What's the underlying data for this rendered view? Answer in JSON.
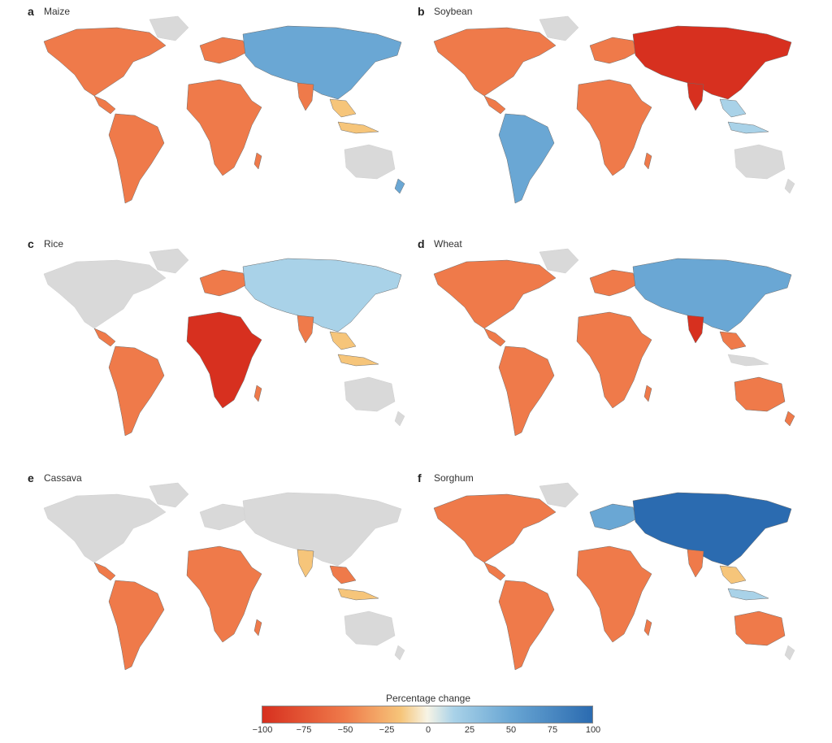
{
  "panels": [
    {
      "letter": "a",
      "crop": "Maize",
      "scheme": "maize"
    },
    {
      "letter": "b",
      "crop": "Soybean",
      "scheme": "soybean"
    },
    {
      "letter": "c",
      "crop": "Rice",
      "scheme": "rice"
    },
    {
      "letter": "d",
      "crop": "Wheat",
      "scheme": "wheat"
    },
    {
      "letter": "e",
      "crop": "Cassava",
      "scheme": "cassava"
    },
    {
      "letter": "f",
      "crop": "Sorghum",
      "scheme": "sorghum"
    }
  ],
  "legend": {
    "title": "Percentage change",
    "ticks": [
      "−100",
      "−75",
      "−50",
      "−25",
      "0",
      "25",
      "50",
      "75",
      "100"
    ],
    "colors": {
      "neg_strong": "#d7301f",
      "neg_mid": "#ef7a4a",
      "neg_weak": "#f6c57a",
      "zero": "#f7f4e6",
      "pos_weak": "#a9d2e8",
      "pos_mid": "#6aa7d4",
      "pos_strong": "#2b6bb0",
      "land": "#d9d9d9"
    }
  }
}
